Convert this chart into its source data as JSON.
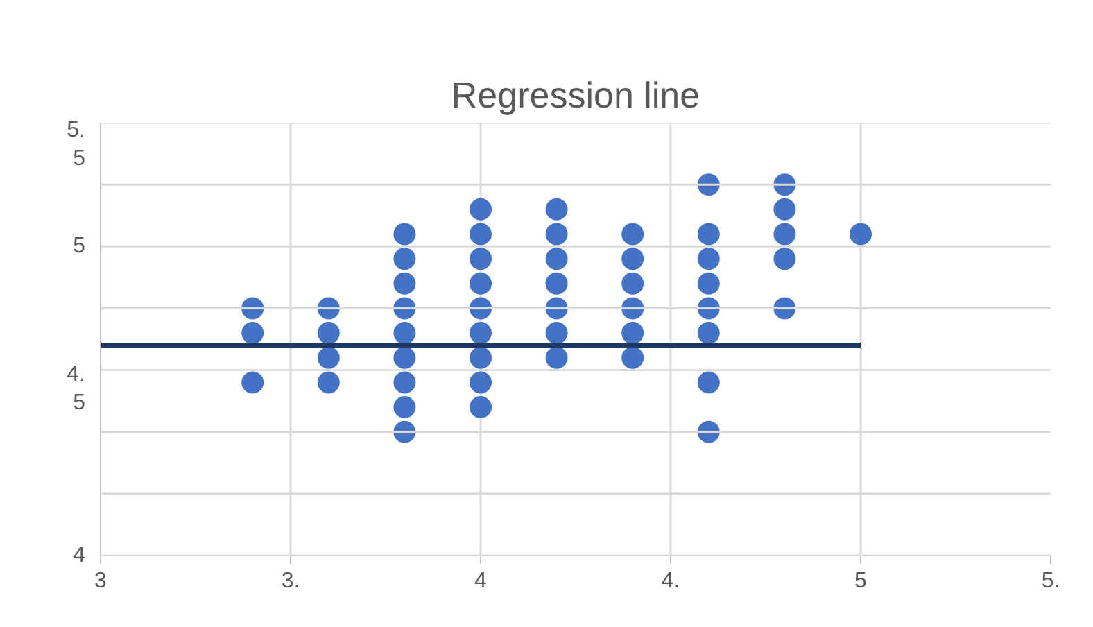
{
  "chart_data": {
    "type": "scatter",
    "title": "Regression line",
    "marker": "circle",
    "grid": true,
    "xlim": [
      3,
      5.5
    ],
    "ylim": [
      4,
      5.4
    ],
    "xticks": [
      3,
      {
        "value": 3.5,
        "label": "3."
      },
      4,
      {
        "value": 4.5,
        "label": "4."
      },
      5,
      {
        "value": 5.5,
        "label": "5."
      }
    ],
    "yticks": [
      4,
      {
        "value": 4.2,
        "label": null
      },
      {
        "value": 4.4,
        "label": null
      },
      {
        "value": 4.54,
        "label": "4.\n5"
      },
      {
        "value": 4.6,
        "label": null
      },
      {
        "value": 4.8,
        "label": null
      },
      5,
      {
        "value": 5.2,
        "label": null
      },
      {
        "value": 5.33,
        "label": "5.\n5"
      },
      {
        "value": 5.4,
        "label": null
      }
    ],
    "series": [
      {
        "color": "#4472c4",
        "x": [
          3.4,
          3.4,
          3.4,
          3.6,
          3.6,
          3.6,
          3.6,
          3.8,
          3.8,
          3.8,
          3.8,
          3.8,
          3.8,
          3.8,
          3.8,
          3.8,
          4.0,
          4.0,
          4.0,
          4.0,
          4.0,
          4.0,
          4.0,
          4.0,
          4.0,
          4.2,
          4.2,
          4.2,
          4.2,
          4.2,
          4.2,
          4.2,
          4.4,
          4.4,
          4.4,
          4.4,
          4.4,
          4.4,
          4.6,
          4.6,
          4.6,
          4.6,
          4.6,
          4.6,
          4.6,
          4.6,
          4.8,
          4.8,
          4.8,
          4.8,
          4.8,
          5.0
        ],
        "values": [
          4.8,
          4.72,
          4.56,
          4.8,
          4.72,
          4.64,
          4.56,
          5.04,
          4.96,
          4.88,
          4.8,
          4.72,
          4.64,
          4.56,
          4.48,
          4.4,
          5.12,
          5.04,
          4.96,
          4.88,
          4.8,
          4.72,
          4.64,
          4.56,
          4.48,
          5.12,
          5.04,
          4.96,
          4.88,
          4.8,
          4.72,
          4.64,
          5.04,
          4.96,
          4.88,
          4.8,
          4.72,
          4.64,
          5.2,
          5.04,
          4.96,
          4.88,
          4.8,
          4.72,
          4.56,
          4.4,
          5.2,
          5.12,
          5.04,
          4.96,
          4.8,
          5.04
        ]
      },
      {
        "type": "line",
        "color": "#1f3864",
        "marker": "none",
        "x": [
          3,
          5
        ],
        "values": [
          4.68,
          4.68
        ]
      }
    ]
  }
}
